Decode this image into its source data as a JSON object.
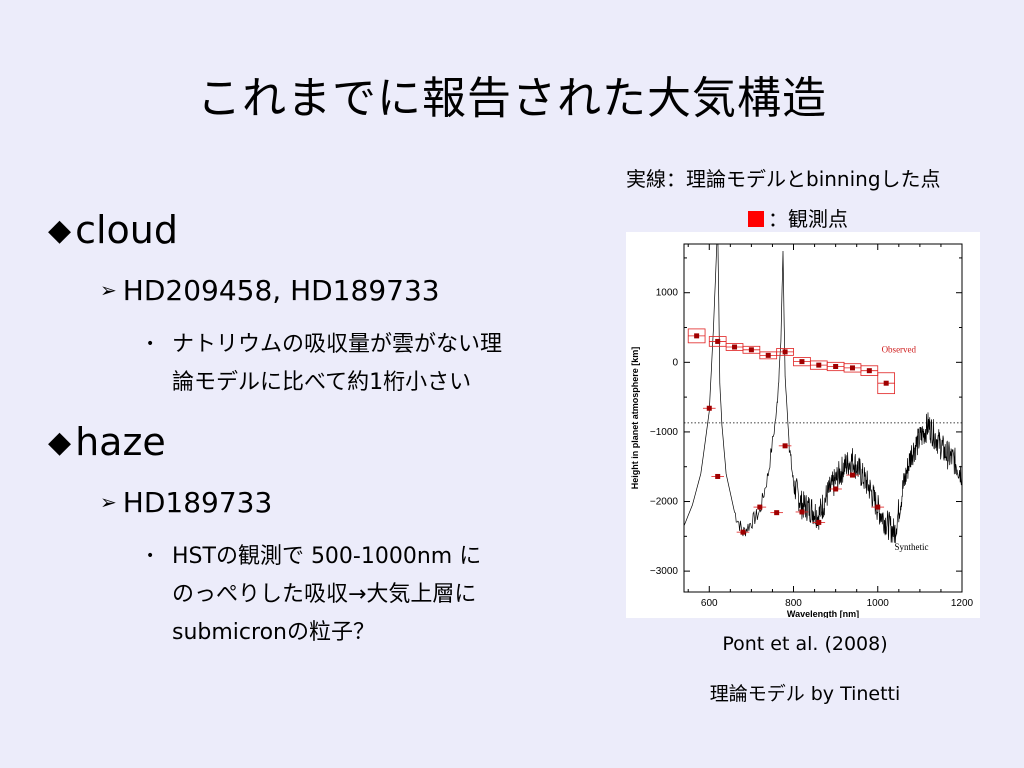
{
  "slide": {
    "title": "これまでに報告された大気構造",
    "bullets": [
      {
        "mark": "◆",
        "label": "cloud",
        "sub": {
          "mark": "➢",
          "label": "HD209458, HD189733",
          "detail": {
            "mark": "•",
            "lines": [
              "ナトリウムの吸収量が雲がない理",
              "論モデルに比べて約1桁小さい"
            ]
          }
        }
      },
      {
        "mark": "◆",
        "label": "haze",
        "sub": {
          "mark": "➢",
          "label": "HD189733",
          "detail": {
            "mark": "•",
            "lines": [
              "HSTの観測で 500-1000nm に",
              "のっぺりした吸収→大気上層に",
              "submicronの粒子？"
            ]
          }
        }
      }
    ]
  },
  "figure": {
    "legend_line": "実線：理論モデルとbinningした点",
    "legend_marker": "：観測点",
    "marker_color": "#ff0000",
    "citation": "Pont et al. (2008)",
    "credit": "理論モデル by Tinetti"
  },
  "chart_data": {
    "type": "line",
    "xlabel": "Wavelength [nm]",
    "ylabel": "Height in planet atmosphere [km]",
    "xlim": [
      540,
      1200
    ],
    "ylim": [
      -3300,
      1700
    ],
    "xticks": [
      600,
      800,
      1000,
      1200
    ],
    "yticks": [
      1000,
      0,
      -1000,
      -2000,
      -3000
    ],
    "reference_line_y": -870,
    "annotations": [
      "Observed",
      "Synthetic"
    ],
    "series": [
      {
        "style": "observed",
        "x": [
          570,
          620,
          660,
          700,
          740,
          780,
          820,
          860,
          900,
          940,
          980,
          1020
        ],
        "y": [
          380,
          300,
          220,
          180,
          100,
          150,
          10,
          -40,
          -60,
          -80,
          -120,
          -300
        ],
        "xerr": [
          20,
          20,
          20,
          20,
          20,
          20,
          20,
          20,
          20,
          20,
          20,
          20
        ],
        "yerr": [
          100,
          70,
          50,
          50,
          50,
          50,
          60,
          60,
          60,
          60,
          70,
          150
        ]
      },
      {
        "style": "model",
        "x": [
          540,
          560,
          580,
          600,
          610,
          620,
          625,
          630,
          640,
          660,
          680,
          700,
          720,
          740,
          760,
          770,
          775,
          780,
          790,
          800,
          820,
          840,
          860,
          880,
          900,
          920,
          940,
          960,
          980,
          1000,
          1020,
          1040,
          1060,
          1080,
          1100,
          1120,
          1140,
          1160,
          1180,
          1200
        ],
        "y": [
          -2350,
          -2050,
          -1600,
          -700,
          500,
          2000,
          -300,
          -900,
          -1600,
          -2150,
          -2450,
          -2300,
          -2150,
          -1600,
          -700,
          300,
          1600,
          -200,
          -1200,
          -1750,
          -2050,
          -2100,
          -2200,
          -1900,
          -1700,
          -1500,
          -1400,
          -1600,
          -1800,
          -2100,
          -2300,
          -2450,
          -1800,
          -1300,
          -1100,
          -900,
          -1100,
          -1300,
          -1400,
          -1600
        ]
      },
      {
        "style": "binned-model",
        "x": [
          600,
          620,
          680,
          720,
          760,
          780,
          820,
          860,
          900,
          940,
          1000
        ],
        "y": [
          -660,
          -1640,
          -2440,
          -2080,
          -2160,
          -1200,
          -2150,
          -2300,
          -1820,
          -1620,
          -2080
        ]
      }
    ]
  }
}
